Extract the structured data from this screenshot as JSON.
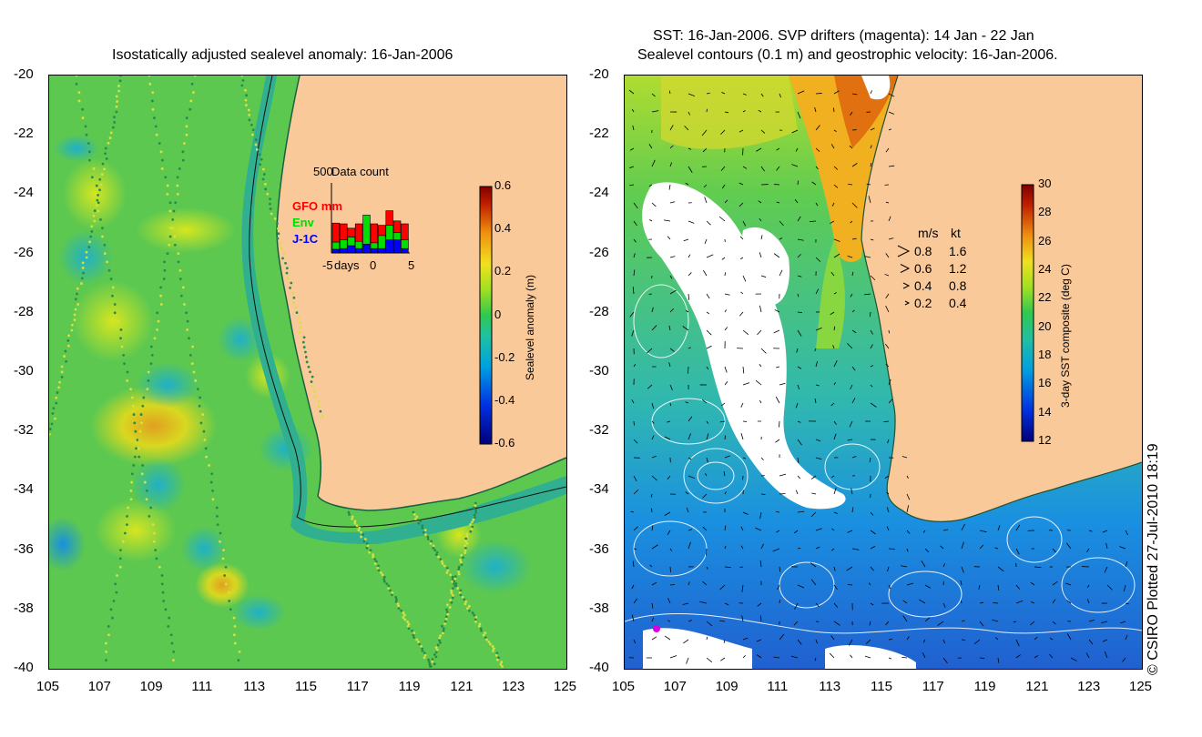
{
  "left_panel": {
    "title": "Isostatically adjusted sealevel anomaly: 16-Jan-2006",
    "y_ticks": [
      "-20",
      "-22",
      "-24",
      "-26",
      "-28",
      "-30",
      "-32",
      "-34",
      "-36",
      "-38",
      "-40"
    ],
    "x_ticks": [
      "105",
      "107",
      "109",
      "111",
      "113",
      "115",
      "117",
      "119",
      "121",
      "123",
      "125"
    ],
    "data_count": {
      "title": "Data count",
      "max_label": "500",
      "legend": [
        {
          "label": "GFO mm",
          "color": "#ff0000"
        },
        {
          "label": "Env",
          "color": "#00dd00"
        },
        {
          "label": "J-1C",
          "color": "#0000ff"
        }
      ],
      "x_labels": {
        "left": "-5",
        "mid_word": "days",
        "zero": "0",
        "right": "5"
      },
      "bars": [
        {
          "day": -5,
          "gfo": 0.26,
          "env": 0.1,
          "j1c": 0.05
        },
        {
          "day": -4,
          "gfo": 0.22,
          "env": 0.12,
          "j1c": 0.06
        },
        {
          "day": -3,
          "gfo": 0.12,
          "env": 0.12,
          "j1c": 0.1
        },
        {
          "day": -2,
          "gfo": 0.24,
          "env": 0.1,
          "j1c": 0.06
        },
        {
          "day": -1,
          "gfo": 0.0,
          "env": 0.4,
          "j1c": 0.12
        },
        {
          "day": 0,
          "gfo": 0.26,
          "env": 0.08,
          "j1c": 0.06
        },
        {
          "day": 1,
          "gfo": 0.14,
          "env": 0.18,
          "j1c": 0.06
        },
        {
          "day": 2,
          "gfo": 0.2,
          "env": 0.2,
          "j1c": 0.18
        },
        {
          "day": 3,
          "gfo": 0.16,
          "env": 0.1,
          "j1c": 0.18
        },
        {
          "day": 4,
          "gfo": 0.22,
          "env": 0.12,
          "j1c": 0.06
        }
      ]
    },
    "colorbar": {
      "label": "Sealevel anomaly (m)",
      "ticks": [
        "0.6",
        "0.4",
        "0.2",
        "0",
        "-0.2",
        "-0.4",
        "-0.6"
      ],
      "range": [
        -0.6,
        0.6
      ]
    }
  },
  "right_panel": {
    "title_line1": "SST: 16-Jan-2006. SVP drifters (magenta): 14 Jan - 22 Jan",
    "title_line2": "Sealevel contours (0.1 m) and geostrophic velocity: 16-Jan-2006.",
    "y_ticks": [
      "-20",
      "-22",
      "-24",
      "-26",
      "-28",
      "-30",
      "-32",
      "-34",
      "-36",
      "-38",
      "-40"
    ],
    "x_ticks": [
      "105",
      "107",
      "109",
      "111",
      "113",
      "115",
      "117",
      "119",
      "121",
      "123",
      "125"
    ],
    "velocity_legend": {
      "header_ms": "m/s",
      "header_kt": "kt",
      "rows": [
        {
          "ms": "0.8",
          "kt": "1.6"
        },
        {
          "ms": "0.6",
          "kt": "1.2"
        },
        {
          "ms": "0.4",
          "kt": "0.8"
        },
        {
          "ms": "0.2",
          "kt": "0.4"
        }
      ]
    },
    "colorbar": {
      "label": "3-day SST composite (deg C)",
      "ticks": [
        "30",
        "28",
        "26",
        "24",
        "22",
        "20",
        "18",
        "16",
        "14",
        "12"
      ],
      "range": [
        12,
        30
      ]
    }
  },
  "credit": "© CSIRO Plotted 27-Jul-2010 18:19",
  "colors": {
    "land": "#f9c99a",
    "ocean_left": "#3cc85a",
    "ocean_right_north": "#88d640",
    "cloud": "#ffffff"
  }
}
